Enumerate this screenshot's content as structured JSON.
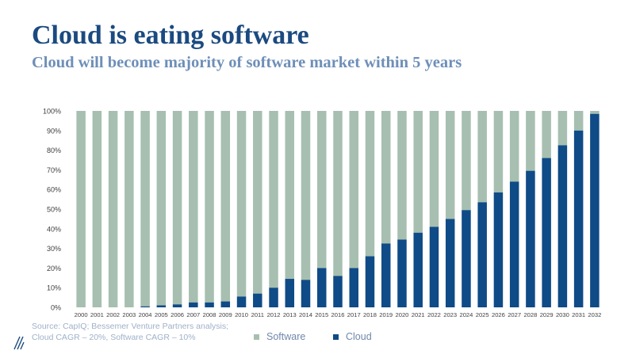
{
  "title": "Cloud is eating software",
  "subtitle": "Cloud will become majority of software market within 5 years",
  "source": {
    "line1": "Source: CapIQ; Bessemer Venture Partners analysis;",
    "line2": "Cloud CAGR – 20%, Software CAGR – 10%"
  },
  "colors": {
    "software": "#a7bfb0",
    "cloud": "#0f4b86",
    "axis_text": "#404040",
    "title": "#1b4a80",
    "subtitle": "#6e8fb8"
  },
  "icons": {
    "logo": "bessemer-logo-icon"
  },
  "chart_data": {
    "type": "bar",
    "stacked": true,
    "categories": [
      "2000",
      "2001",
      "2002",
      "2003",
      "2004",
      "2005",
      "2006",
      "2007",
      "2008",
      "2009",
      "2010",
      "2011",
      "2012",
      "2013",
      "2014",
      "2015",
      "2016",
      "2017",
      "2018",
      "2019",
      "2020",
      "2021",
      "2022",
      "2023",
      "2024",
      "2025",
      "2026",
      "2027",
      "2028",
      "2029",
      "2030",
      "2031",
      "2032"
    ],
    "series": [
      {
        "name": "Software",
        "values": [
          100,
          100,
          100,
          100,
          99.5,
          99,
          98.5,
          97.5,
          97.5,
          97,
          94.5,
          93,
          90,
          85.5,
          86,
          80,
          84,
          80,
          74,
          67.5,
          65.5,
          62,
          59,
          55,
          50.5,
          46.5,
          41.5,
          36,
          30.5,
          24,
          17.5,
          10,
          1.5
        ]
      },
      {
        "name": "Cloud",
        "values": [
          0,
          0,
          0,
          0,
          0.5,
          1,
          1.5,
          2.5,
          2.5,
          3,
          5.5,
          7,
          10,
          14.5,
          14,
          20,
          16,
          20,
          26,
          32.5,
          34.5,
          38,
          41,
          45,
          49.5,
          53.5,
          58.5,
          64,
          69.5,
          76,
          82.5,
          90,
          98.5
        ]
      }
    ],
    "ylim": [
      0,
      100
    ],
    "yticks": [
      "0%",
      "10%",
      "20%",
      "30%",
      "40%",
      "50%",
      "60%",
      "70%",
      "80%",
      "90%",
      "100%"
    ],
    "legend": "bottom-center",
    "grid": false
  }
}
